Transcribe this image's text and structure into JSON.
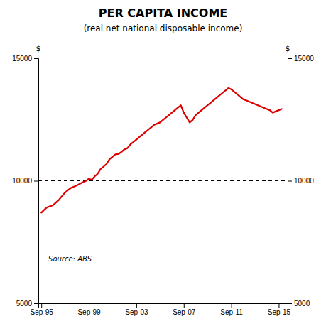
{
  "chart_data": {
    "type": "line",
    "title": "PER CAPITA INCOME",
    "subtitle": "(real net national disposable income)",
    "y_label": "$",
    "y2_label": "$",
    "annotation": "Source: ABS",
    "color": "#dd0000",
    "grid": false,
    "xlim": [
      1995.5,
      2016.5
    ],
    "xticks": [
      {
        "value": 1995.75,
        "label": "Sep-95"
      },
      {
        "value": 1999.75,
        "label": "Sep-99"
      },
      {
        "value": 2003.75,
        "label": "Sep-03"
      },
      {
        "value": 2007.75,
        "label": "Sep-07"
      },
      {
        "value": 2011.75,
        "label": "Sep-11"
      },
      {
        "value": 2015.75,
        "label": "Sep-15"
      }
    ],
    "ylim": [
      5000,
      15000
    ],
    "yticks": [
      5000,
      10000,
      15000
    ],
    "y2lim": [
      5000,
      15000
    ],
    "y2ticks": [
      5000,
      10000,
      15000
    ],
    "reference_line": 10000,
    "x": [
      1995.75,
      1996.0,
      1996.25,
      1996.5,
      1996.75,
      1997.0,
      1997.25,
      1997.5,
      1997.75,
      1998.0,
      1998.25,
      1998.5,
      1998.75,
      1999.0,
      1999.25,
      1999.5,
      1999.75,
      2000.0,
      2000.25,
      2000.5,
      2000.75,
      2001.0,
      2001.25,
      2001.5,
      2001.75,
      2002.0,
      2002.25,
      2002.5,
      2002.75,
      2003.0,
      2003.25,
      2003.5,
      2003.75,
      2004.0,
      2004.25,
      2004.5,
      2004.75,
      2005.0,
      2005.25,
      2005.5,
      2005.75,
      2006.0,
      2006.25,
      2006.5,
      2006.75,
      2007.0,
      2007.25,
      2007.5,
      2007.75,
      2008.0,
      2008.25,
      2008.5,
      2008.75,
      2009.0,
      2009.25,
      2009.5,
      2009.75,
      2010.0,
      2010.25,
      2010.5,
      2010.75,
      2011.0,
      2011.25,
      2011.5,
      2011.75,
      2012.0,
      2012.25,
      2012.5,
      2012.75,
      2013.0,
      2013.25,
      2013.5,
      2013.75,
      2014.0,
      2014.25,
      2014.5,
      2014.75,
      2015.0,
      2015.25,
      2015.5,
      2015.75,
      2016.0
    ],
    "values": [
      8700,
      8820,
      8920,
      8960,
      9010,
      9120,
      9230,
      9380,
      9520,
      9620,
      9710,
      9760,
      9810,
      9880,
      9940,
      9990,
      10080,
      10040,
      10180,
      10290,
      10480,
      10580,
      10690,
      10880,
      10980,
      11080,
      11090,
      11180,
      11280,
      11330,
      11480,
      11580,
      11680,
      11780,
      11880,
      11980,
      12080,
      12180,
      12280,
      12330,
      12380,
      12480,
      12580,
      12680,
      12780,
      12880,
      12980,
      13080,
      12780,
      12580,
      12380,
      12480,
      12680,
      12780,
      12880,
      12980,
      13080,
      13180,
      13280,
      13380,
      13480,
      13580,
      13680,
      13780,
      13730,
      13630,
      13530,
      13430,
      13330,
      13280,
      13230,
      13180,
      13130,
      13080,
      13030,
      12980,
      12930,
      12880,
      12780,
      12830,
      12880,
      12930
    ]
  }
}
